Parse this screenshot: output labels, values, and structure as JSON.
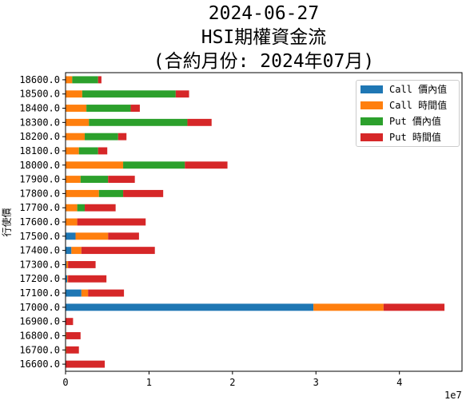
{
  "title_lines": [
    "2024-06-27",
    "HSI期權資金流",
    "(合約月份: 2024年07月)"
  ],
  "chart_data": {
    "type": "bar",
    "orientation": "horizontal",
    "stacked": true,
    "title": "2024-06-27\nHSI期權資金流\n(合約月份: 2024年07月)",
    "ylabel": "行使價",
    "xlabel": "",
    "x_scale_label": "1e7",
    "xlim": [
      0,
      47500000
    ],
    "xticks": [
      0,
      10000000,
      20000000,
      30000000,
      40000000
    ],
    "xtick_labels": [
      "0",
      "1",
      "2",
      "3",
      "4"
    ],
    "legend_position": "top-right",
    "categories": [
      "16600.0",
      "16700.0",
      "16800.0",
      "16900.0",
      "17000.0",
      "17100.0",
      "17200.0",
      "17300.0",
      "17400.0",
      "17500.0",
      "17600.0",
      "17700.0",
      "17800.0",
      "17900.0",
      "18000.0",
      "18100.0",
      "18200.0",
      "18300.0",
      "18400.0",
      "18500.0",
      "18600.0"
    ],
    "series": [
      {
        "name": "Call 價內值",
        "color": "#1f77b4",
        "values": [
          0,
          0,
          0,
          0,
          29700000,
          1900000,
          200000,
          100000,
          700000,
          1200000,
          0,
          0,
          0,
          0,
          0,
          0,
          0,
          0,
          0,
          0,
          0
        ]
      },
      {
        "name": "Call 時間值",
        "color": "#ff7f0e",
        "values": [
          0,
          100000,
          100000,
          0,
          8400000,
          800000,
          100000,
          200000,
          1200000,
          3900000,
          1400000,
          1400000,
          4000000,
          1800000,
          6900000,
          1600000,
          2300000,
          2800000,
          2500000,
          2000000,
          800000
        ]
      },
      {
        "name": "Put 價內值",
        "color": "#2ca02c",
        "values": [
          0,
          0,
          0,
          0,
          0,
          0,
          0,
          0,
          0,
          0,
          0,
          900000,
          2900000,
          3300000,
          7400000,
          2300000,
          4000000,
          11800000,
          5300000,
          11200000,
          3100000
        ]
      },
      {
        "name": "Put 時間值",
        "color": "#d62728",
        "values": [
          4700000,
          1500000,
          1700000,
          900000,
          7300000,
          4300000,
          4600000,
          3300000,
          8800000,
          3700000,
          8200000,
          3700000,
          4800000,
          3200000,
          5100000,
          1100000,
          1000000,
          2900000,
          1100000,
          1600000,
          400000
        ]
      }
    ]
  }
}
